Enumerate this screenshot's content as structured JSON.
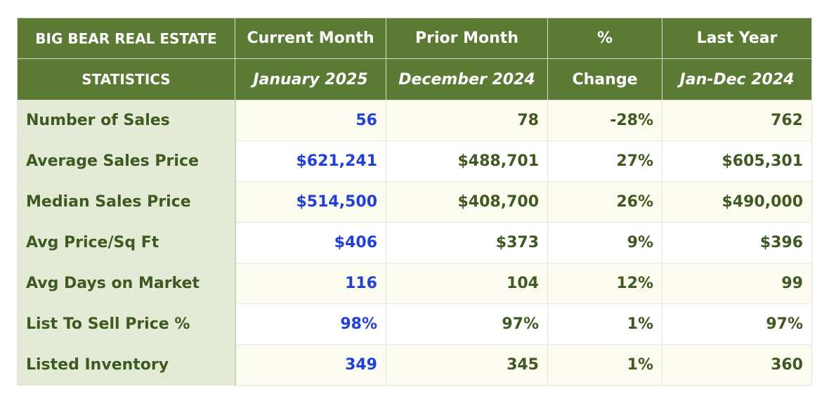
{
  "header": {
    "title_line1": "BIG BEAR REAL ESTATE",
    "title_line2": "STATISTICS",
    "columns": [
      {
        "line1": "Current Month",
        "line2": "January 2025"
      },
      {
        "line1": "Prior Month",
        "line2": "December 2024"
      },
      {
        "line1": "%",
        "line2": "Change"
      },
      {
        "line1": "Last Year",
        "line2": "Jan-Dec 2024"
      }
    ]
  },
  "rows": [
    {
      "label": "Number of Sales",
      "current": "56",
      "prior": "78",
      "change": "-28%",
      "last_year": "762"
    },
    {
      "label": "Average Sales Price",
      "current": "$621,241",
      "prior": "$488,701",
      "change": "27%",
      "last_year": "$605,301"
    },
    {
      "label": "Median Sales Price",
      "current": "$514,500",
      "prior": "$408,700",
      "change": "26%",
      "last_year": "$490,000"
    },
    {
      "label": "Avg Price/Sq Ft",
      "current": "$406",
      "prior": "$373",
      "change": "9%",
      "last_year": "$396"
    },
    {
      "label": "Avg Days on Market",
      "current": "116",
      "prior": "104",
      "change": "12%",
      "last_year": "99"
    },
    {
      "label": "List To Sell Price %",
      "current": "98%",
      "prior": "97%",
      "change": "1%",
      "last_year": "97%"
    },
    {
      "label": "Listed Inventory",
      "current": "349",
      "prior": "345",
      "change": "1%",
      "last_year": "360"
    }
  ],
  "colors": {
    "header_bg": "#5b7a34",
    "label_bg": "#e3ebd6",
    "label_text": "#3f5a20",
    "current_month_text": "#1f3fe0"
  }
}
